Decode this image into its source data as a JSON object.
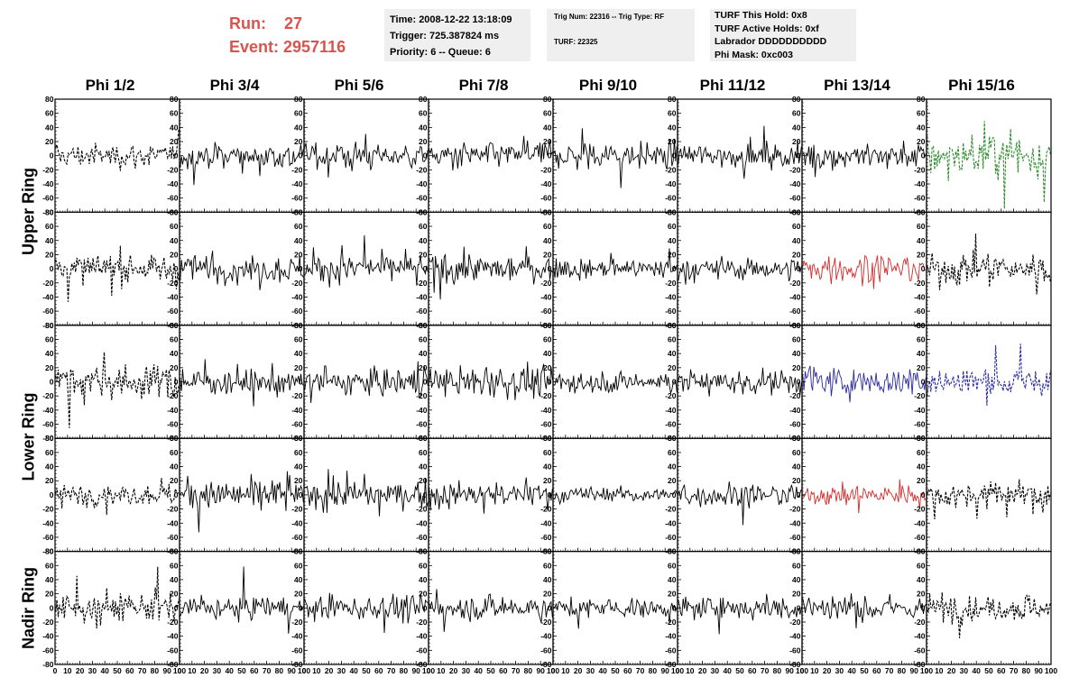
{
  "header": {
    "run_label": "Run:    27",
    "event_label": "Event: 2957116"
  },
  "info_time": {
    "time": "Time: 2008-12-22 13:18:09",
    "trigger": "Trigger: 725.387824 ms",
    "priority": "Priority: 6 -- Queue: 6"
  },
  "info_trig": {
    "trig": "Trig Num: 22316 -- Trig Type: RF",
    "turf": "TURF: 22325"
  },
  "info_turf": {
    "hold": "TURF This Hold: 0x8",
    "active": "TURF Active Holds: 0xf",
    "labrador": "Labrador DDDDDDDDDD",
    "phimask": "Phi Mask: 0xc003"
  },
  "columns": [
    "Phi 1/2",
    "Phi 3/4",
    "Phi 5/6",
    "Phi 7/8",
    "Phi 9/10",
    "Phi 11/12",
    "Phi 13/14",
    "Phi 15/16"
  ],
  "row_labels": [
    {
      "label": "Upper Ring",
      "spans_rows": [
        0,
        1
      ]
    },
    {
      "label": "Lower Ring",
      "spans_rows": [
        2,
        3
      ]
    },
    {
      "label": "Nadir Ring",
      "spans_rows": [
        4,
        4
      ]
    }
  ],
  "chart_data": {
    "type": "line",
    "xlim": [
      0,
      100
    ],
    "ylim": [
      -80,
      80
    ],
    "x_ticks": [
      0,
      10,
      20,
      30,
      40,
      50,
      60,
      70,
      80,
      90,
      100
    ],
    "y_ticks": [
      -80,
      -60,
      -40,
      -20,
      0,
      20,
      40,
      60,
      80
    ],
    "grid_rows": 5,
    "grid_cols": 8,
    "n_samples": 100,
    "highlight_colors": {
      "default": "#000000",
      "green": "#2e8b2e",
      "red": "#d42a2a",
      "blue": "#2a2a9e"
    },
    "panels": [
      [
        {
          "amp": 12,
          "style": "dashed",
          "color": "default"
        },
        {
          "amp": 14,
          "style": "solid",
          "color": "default"
        },
        {
          "amp": 13,
          "style": "solid",
          "color": "default"
        },
        {
          "amp": 12,
          "style": "solid",
          "color": "default"
        },
        {
          "amp": 14,
          "style": "solid",
          "color": "default"
        },
        {
          "amp": 11,
          "style": "solid",
          "color": "default"
        },
        {
          "amp": 14,
          "style": "solid",
          "color": "default"
        },
        {
          "amp": 22,
          "style": "dashed",
          "color": "green"
        }
      ],
      [
        {
          "amp": 14,
          "style": "dashed",
          "color": "default"
        },
        {
          "amp": 14,
          "style": "solid",
          "color": "default"
        },
        {
          "amp": 14,
          "style": "solid",
          "color": "default"
        },
        {
          "amp": 14,
          "style": "solid",
          "color": "default"
        },
        {
          "amp": 10,
          "style": "solid",
          "color": "default"
        },
        {
          "amp": 11,
          "style": "solid",
          "color": "default"
        },
        {
          "amp": 15,
          "style": "solid",
          "color": "red"
        },
        {
          "amp": 15,
          "style": "dashed",
          "color": "default"
        }
      ],
      [
        {
          "amp": 16,
          "style": "dashed",
          "color": "default"
        },
        {
          "amp": 14,
          "style": "solid",
          "color": "default"
        },
        {
          "amp": 14,
          "style": "solid",
          "color": "default"
        },
        {
          "amp": 14,
          "style": "solid",
          "color": "default"
        },
        {
          "amp": 11,
          "style": "solid",
          "color": "default"
        },
        {
          "amp": 12,
          "style": "solid",
          "color": "default"
        },
        {
          "amp": 15,
          "style": "solid",
          "color": "blue"
        },
        {
          "amp": 15,
          "style": "dashed",
          "color": "blue"
        }
      ],
      [
        {
          "amp": 10,
          "style": "dashed",
          "color": "default"
        },
        {
          "amp": 15,
          "style": "solid",
          "color": "default"
        },
        {
          "amp": 13,
          "style": "solid",
          "color": "default"
        },
        {
          "amp": 13,
          "style": "solid",
          "color": "default"
        },
        {
          "amp": 8,
          "style": "solid",
          "color": "default"
        },
        {
          "amp": 12,
          "style": "solid",
          "color": "default"
        },
        {
          "amp": 10,
          "style": "solid",
          "color": "red"
        },
        {
          "amp": 13,
          "style": "dashed",
          "color": "default"
        }
      ],
      [
        {
          "amp": 15,
          "style": "dashed",
          "color": "default"
        },
        {
          "amp": 11,
          "style": "solid",
          "color": "default"
        },
        {
          "amp": 12,
          "style": "solid",
          "color": "default"
        },
        {
          "amp": 12,
          "style": "solid",
          "color": "default"
        },
        {
          "amp": 10,
          "style": "solid",
          "color": "default"
        },
        {
          "amp": 11,
          "style": "solid",
          "color": "default"
        },
        {
          "amp": 13,
          "style": "solid",
          "color": "default"
        },
        {
          "amp": 13,
          "style": "dashed",
          "color": "default"
        }
      ]
    ]
  }
}
